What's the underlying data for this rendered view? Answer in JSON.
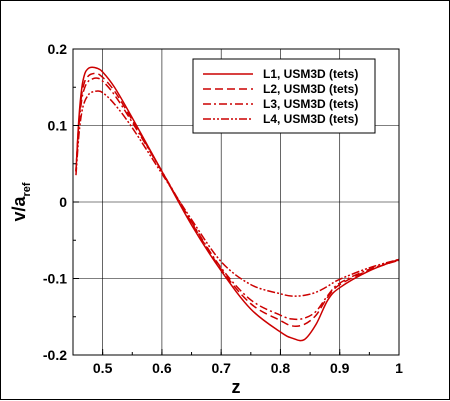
{
  "chart_data": {
    "type": "line",
    "title": "",
    "xlabel": "z",
    "ylabel": "v/a",
    "ylabel_subscript": "ref",
    "xlim": [
      0.45,
      1.0
    ],
    "ylim": [
      -0.2,
      0.2
    ],
    "xticks": [
      0.5,
      0.6,
      0.7,
      0.8,
      0.9,
      1
    ],
    "xtick_labels": [
      "0.5",
      "0.6",
      "0.7",
      "0.8",
      "0.9",
      "1"
    ],
    "yticks": [
      0.2,
      0.1,
      0,
      -0.1,
      -0.2
    ],
    "ytick_labels": [
      "0.2",
      "0.1",
      "0",
      "-0.1",
      "-0.2"
    ],
    "grid": true,
    "legend_position": "top-right",
    "line_color": "#cc0000",
    "series": [
      {
        "name": "L1, USM3D (tets)",
        "dash": "solid",
        "x": [
          0.455,
          0.46,
          0.465,
          0.47,
          0.475,
          0.48,
          0.49,
          0.5,
          0.52,
          0.55,
          0.6,
          0.65,
          0.7,
          0.75,
          0.8,
          0.82,
          0.84,
          0.86,
          0.88,
          0.9,
          0.95,
          1.0
        ],
        "y": [
          0.04,
          0.11,
          0.15,
          0.168,
          0.174,
          0.176,
          0.175,
          0.17,
          0.15,
          0.11,
          0.04,
          -0.03,
          -0.09,
          -0.14,
          -0.17,
          -0.178,
          -0.18,
          -0.16,
          -0.128,
          -0.112,
          -0.09,
          -0.075
        ]
      },
      {
        "name": "L2, USM3D (tets)",
        "dash": "8,4",
        "x": [
          0.455,
          0.46,
          0.465,
          0.47,
          0.475,
          0.48,
          0.49,
          0.5,
          0.52,
          0.55,
          0.6,
          0.65,
          0.7,
          0.75,
          0.8,
          0.82,
          0.84,
          0.86,
          0.88,
          0.9,
          0.95,
          1.0
        ],
        "y": [
          0.04,
          0.105,
          0.142,
          0.158,
          0.164,
          0.167,
          0.168,
          0.163,
          0.145,
          0.107,
          0.04,
          -0.027,
          -0.088,
          -0.133,
          -0.155,
          -0.162,
          -0.16,
          -0.148,
          -0.124,
          -0.108,
          -0.089,
          -0.076
        ]
      },
      {
        "name": "L3, USM3D (tets)",
        "dash": "8,3,2,3",
        "x": [
          0.455,
          0.46,
          0.465,
          0.47,
          0.475,
          0.48,
          0.49,
          0.5,
          0.52,
          0.55,
          0.6,
          0.65,
          0.7,
          0.75,
          0.8,
          0.82,
          0.84,
          0.86,
          0.88,
          0.9,
          0.95,
          1.0
        ],
        "y": [
          0.04,
          0.1,
          0.135,
          0.15,
          0.157,
          0.16,
          0.162,
          0.158,
          0.14,
          0.104,
          0.04,
          -0.026,
          -0.086,
          -0.128,
          -0.148,
          -0.153,
          -0.152,
          -0.143,
          -0.122,
          -0.106,
          -0.088,
          -0.076
        ]
      },
      {
        "name": "L4, USM3D (tets)",
        "dash": "8,2,2,2,2,2",
        "x": [
          0.455,
          0.46,
          0.465,
          0.47,
          0.475,
          0.48,
          0.49,
          0.5,
          0.52,
          0.55,
          0.6,
          0.65,
          0.7,
          0.75,
          0.8,
          0.82,
          0.84,
          0.86,
          0.88,
          0.9,
          0.95,
          1.0
        ],
        "y": [
          0.035,
          0.088,
          0.118,
          0.132,
          0.139,
          0.143,
          0.145,
          0.143,
          0.128,
          0.097,
          0.037,
          -0.023,
          -0.078,
          -0.108,
          -0.12,
          -0.123,
          -0.122,
          -0.118,
          -0.11,
          -0.101,
          -0.086,
          -0.075
        ]
      }
    ]
  }
}
